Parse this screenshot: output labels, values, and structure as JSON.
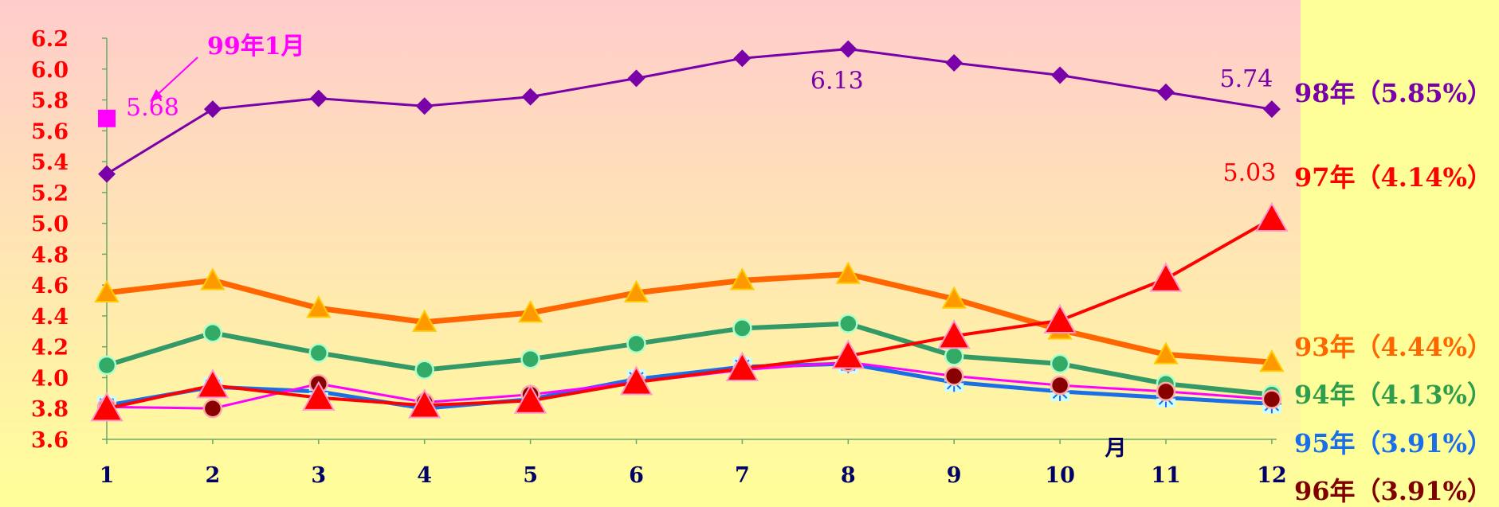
{
  "chart_data": {
    "type": "line",
    "title": "",
    "xlabel": "月",
    "ylabel": "",
    "categories": [
      "1",
      "2",
      "3",
      "4",
      "5",
      "6",
      "7",
      "8",
      "9",
      "10",
      "11",
      "12"
    ],
    "ylim": [
      3.6,
      6.2
    ],
    "yticks": [
      "3.6",
      "3.8",
      "4.0",
      "4.2",
      "4.4",
      "4.6",
      "4.8",
      "5.0",
      "5.2",
      "5.4",
      "5.6",
      "5.8",
      "6.0",
      "6.2"
    ],
    "grid": false,
    "legend_position": "right",
    "series": [
      {
        "name": "98年（5.85%）",
        "color": "#7a00a8",
        "marker": "diamond",
        "values": [
          5.32,
          5.74,
          5.81,
          5.76,
          5.82,
          5.94,
          6.07,
          6.13,
          6.04,
          5.96,
          5.85,
          5.74
        ]
      },
      {
        "name": "97年（4.14%）",
        "color": "#ff0000",
        "marker": "triangle",
        "values": [
          3.8,
          3.95,
          3.87,
          3.82,
          3.85,
          3.97,
          4.06,
          4.14,
          4.27,
          4.37,
          4.64,
          5.03
        ]
      },
      {
        "name": "93年（4.44%）",
        "color": "#ff6600",
        "marker": "triangle",
        "values": [
          4.55,
          4.63,
          4.45,
          4.36,
          4.42,
          4.55,
          4.63,
          4.67,
          4.51,
          4.31,
          4.15,
          4.1
        ]
      },
      {
        "name": "94年（4.13%）",
        "color": "#339966",
        "marker": "circle",
        "values": [
          4.08,
          4.29,
          4.16,
          4.05,
          4.12,
          4.22,
          4.32,
          4.35,
          4.14,
          4.09,
          3.96,
          3.89
        ]
      },
      {
        "name": "95年（3.91%）",
        "color": "#1a6ee8",
        "marker": "starburst",
        "values": [
          3.82,
          3.94,
          3.91,
          3.8,
          3.86,
          3.99,
          4.07,
          4.09,
          3.97,
          3.91,
          3.87,
          3.83
        ]
      },
      {
        "name": "96年（3.91%）",
        "color": "#800000",
        "marker": "circle",
        "values": [
          3.81,
          3.8,
          3.96,
          3.84,
          3.89,
          3.97,
          4.05,
          4.1,
          4.01,
          3.95,
          3.91,
          3.86
        ]
      }
    ],
    "highlight_point": {
      "label": "99年1月",
      "value": "5.68",
      "month": "1",
      "y": 5.68,
      "color": "#ff00ff"
    },
    "data_labels": [
      {
        "text": "6.13",
        "color": "#7a00a8"
      },
      {
        "text": "5.74",
        "color": "#7a00a8"
      },
      {
        "text": "5.03",
        "color": "#ff0000"
      }
    ],
    "colors": {
      "plot_bg_top": "#ffcccc",
      "plot_bg_bottom": "#ffff99",
      "page_bg": "#ffff99",
      "axis": "#66aa66"
    }
  }
}
